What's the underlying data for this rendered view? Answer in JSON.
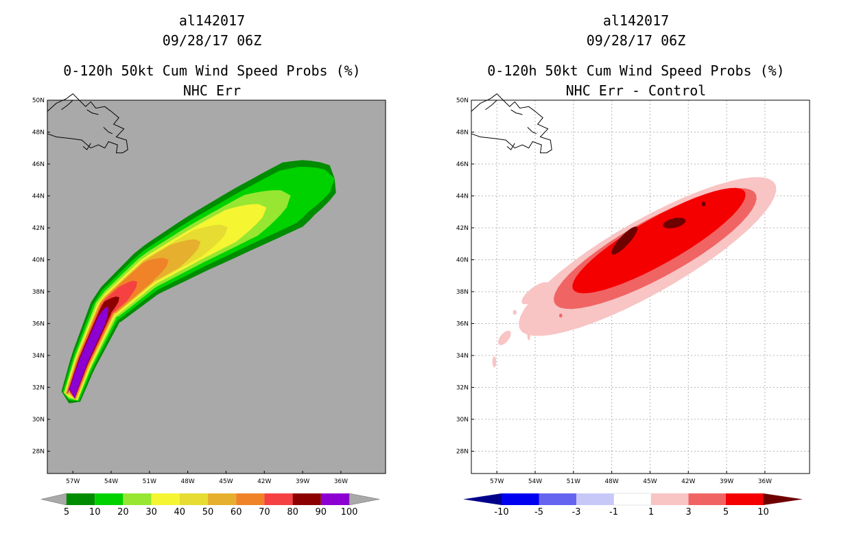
{
  "chart_data": [
    {
      "type": "heatmap",
      "storm_id": "al142017",
      "datetime": "09/28/17 06Z",
      "title": "0-120h 50kt Cum Wind Speed Probs (%)",
      "subtitle": "NHC Err",
      "xlabel": "",
      "ylabel": "",
      "xlim": [
        -59,
        -32.5
      ],
      "ylim": [
        26.6,
        50
      ],
      "x_ticks": [
        "57W",
        "54W",
        "51W",
        "48W",
        "45W",
        "42W",
        "39W",
        "36W"
      ],
      "x_tick_values": [
        -57,
        -54,
        -51,
        -48,
        -45,
        -42,
        -39,
        -36
      ],
      "y_ticks": [
        "28N",
        "30N",
        "32N",
        "34N",
        "36N",
        "38N",
        "40N",
        "42N",
        "44N",
        "46N",
        "48N",
        "50N"
      ],
      "y_tick_values": [
        28,
        30,
        32,
        34,
        36,
        38,
        40,
        42,
        44,
        46,
        48,
        50
      ],
      "grid": false,
      "background_color": "#a9a9a9",
      "colorbar": {
        "labels": [
          "5",
          "10",
          "20",
          "30",
          "40",
          "50",
          "60",
          "70",
          "80",
          "90",
          "100"
        ],
        "colors": [
          "#008c00",
          "#00d200",
          "#96e632",
          "#f5f532",
          "#e6dc32",
          "#e6af2d",
          "#f08228",
          "#f54141",
          "#8c0000",
          "#8c00d2"
        ],
        "under_color": "#a9a9a9",
        "over_color": "#a9a9a9"
      },
      "track_centerline": [
        [
          -57.3,
          31.1
        ],
        [
          -56.2,
          33.6
        ],
        [
          -54.3,
          37.0
        ],
        [
          -51.0,
          39.3
        ],
        [
          -47.3,
          41.0
        ],
        [
          -43.5,
          42.6
        ],
        [
          -39.0,
          44.4
        ],
        [
          -36.5,
          45.1
        ]
      ],
      "contour_levels": [
        {
          "level": 5,
          "color": "#008c00",
          "end_lon": -35.9,
          "end_lat": 45.1,
          "half_width": [
            0.8,
            2.2
          ],
          "tip_lat": 31.0
        },
        {
          "level": 10,
          "color": "#00d200",
          "end_lon": -37.0,
          "end_lat": 44.9,
          "half_width": [
            0.7,
            1.8
          ],
          "tip_lat": 31.2
        },
        {
          "level": 20,
          "color": "#96e632",
          "end_lon": -40.5,
          "end_lat": 43.8,
          "half_width": [
            0.6,
            1.4
          ],
          "tip_lat": 31.3
        },
        {
          "level": 30,
          "color": "#f5f532",
          "end_lon": -42.5,
          "end_lat": 43.3,
          "half_width": [
            0.55,
            1.1
          ],
          "tip_lat": 31.4
        },
        {
          "level": 40,
          "color": "#e6dc32",
          "end_lon": -45.5,
          "end_lat": 42.0,
          "half_width": [
            0.5,
            0.9
          ],
          "tip_lat": 31.5
        },
        {
          "level": 50,
          "color": "#e6af2d",
          "end_lon": -47.5,
          "end_lat": 40.8,
          "half_width": [
            0.45,
            0.8
          ],
          "tip_lat": 31.6
        },
        {
          "level": 60,
          "color": "#f08228",
          "end_lon": -50.0,
          "end_lat": 39.6,
          "half_width": [
            0.4,
            0.7
          ],
          "tip_lat": 31.7
        },
        {
          "level": 70,
          "color": "#f54141",
          "end_lon": -52.5,
          "end_lat": 38.3,
          "half_width": [
            0.35,
            0.55
          ],
          "tip_lat": 31.8
        },
        {
          "level": 80,
          "color": "#8c0000",
          "end_lon": -53.8,
          "end_lat": 37.2,
          "half_width": [
            0.32,
            0.45
          ],
          "tip_lat": 31.9
        },
        {
          "level": 90,
          "color": "#8c00d2",
          "end_lon": -54.5,
          "end_lat": 36.5,
          "half_width": [
            0.3,
            0.35
          ],
          "tip_lat": 32.0
        }
      ]
    },
    {
      "type": "heatmap",
      "storm_id": "al142017",
      "datetime": "09/28/17 06Z",
      "title": "0-120h 50kt Cum Wind Speed Probs (%)",
      "subtitle": "NHC Err - Control",
      "xlabel": "",
      "ylabel": "",
      "xlim": [
        -59,
        -32.5
      ],
      "ylim": [
        26.6,
        50
      ],
      "x_ticks": [
        "57W",
        "54W",
        "51W",
        "48W",
        "45W",
        "42W",
        "39W",
        "36W"
      ],
      "x_tick_values": [
        -57,
        -54,
        -51,
        -48,
        -45,
        -42,
        -39,
        -36
      ],
      "y_ticks": [
        "28N",
        "30N",
        "32N",
        "34N",
        "36N",
        "38N",
        "40N",
        "42N",
        "44N",
        "46N",
        "48N",
        "50N"
      ],
      "y_tick_values": [
        28,
        30,
        32,
        34,
        36,
        38,
        40,
        42,
        44,
        46,
        48,
        50
      ],
      "grid": true,
      "background_color": "#ffffff",
      "colorbar": {
        "labels": [
          "-10",
          "-5",
          "-3",
          "-1",
          "1",
          "3",
          "5",
          "10"
        ],
        "colors": [
          "#0000f0",
          "#6464f0",
          "#c8c8f8",
          "#ffffff",
          "#f8c4c4",
          "#f06464",
          "#f50000"
        ],
        "under_color": "#00008c",
        "over_color": "#6e0000"
      },
      "difference_blobs": [
        {
          "range": "1 to 3",
          "color": "#f8c4c4",
          "center": [
            -45.2,
            40.2
          ],
          "radii": [
            11.0,
            2.4
          ],
          "angle_deg": 24
        },
        {
          "range": "3 to 5",
          "color": "#f06464",
          "center": [
            -44.6,
            40.7
          ],
          "radii": [
            8.6,
            1.9
          ],
          "angle_deg": 23
        },
        {
          "range": "5 to 10",
          "color": "#f50000",
          "center": [
            -44.3,
            41.2
          ],
          "radii": [
            7.4,
            1.5
          ],
          "angle_deg": 24
        },
        {
          "range": "> 10",
          "color": "#6e0000",
          "center": [
            -47.0,
            41.2
          ],
          "radii": [
            1.3,
            0.35
          ],
          "angle_deg": 40
        },
        {
          "range": "> 10",
          "color": "#6e0000",
          "center": [
            -43.1,
            42.3
          ],
          "radii": [
            0.9,
            0.3
          ],
          "angle_deg": 10
        },
        {
          "range": "> 10",
          "color": "#6e0000",
          "center": [
            -40.8,
            43.5
          ],
          "radii": [
            0.15,
            0.15
          ],
          "angle_deg": 0
        }
      ],
      "isolated_patches": [
        {
          "color": "#f8c4c4",
          "center": [
            -54.0,
            37.9
          ],
          "radii": [
            1.2,
            0.4
          ],
          "angle_deg": 30
        },
        {
          "color": "#f8c4c4",
          "center": [
            -56.4,
            35.1
          ],
          "radii": [
            0.6,
            0.3
          ],
          "angle_deg": 40
        },
        {
          "color": "#f8c4c4",
          "center": [
            -57.2,
            33.6
          ],
          "radii": [
            0.15,
            0.35
          ],
          "angle_deg": 0
        },
        {
          "color": "#f8c4c4",
          "center": [
            -54.5,
            35.3
          ],
          "radii": [
            0.12,
            0.35
          ],
          "angle_deg": 0
        },
        {
          "color": "#f8c4c4",
          "center": [
            -55.6,
            36.7
          ],
          "radii": [
            0.15,
            0.15
          ],
          "angle_deg": 0
        },
        {
          "color": "#f06464",
          "center": [
            -52.0,
            36.5
          ],
          "radii": [
            0.12,
            0.12
          ],
          "angle_deg": 0
        }
      ]
    }
  ]
}
